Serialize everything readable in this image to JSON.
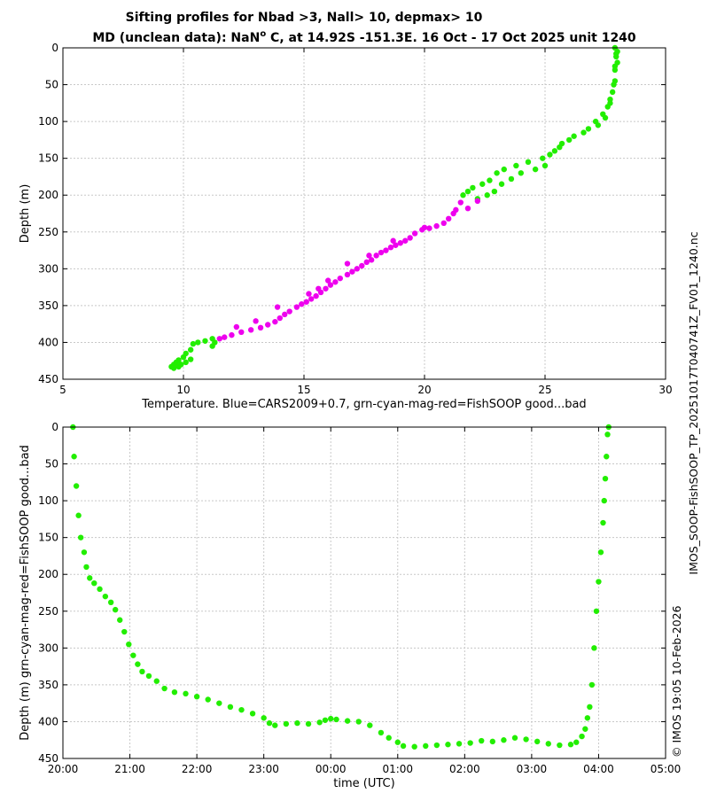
{
  "titles": {
    "line1": "Sifting profiles for Nbad >3, Nall> 10, depmax> 10",
    "line2_prefix": "MD (unclean data): NaN",
    "line2_degree": "o",
    "line2_suffix": " C, at 14.92S -151.3E. 16 Oct - 17 Oct 2025 unit 1240"
  },
  "side_labels": {
    "right_top": "IMOS_SOOP-FishSOOP_TP_20251017T040741Z_FV01_1240.nc",
    "right_bottom": "© IMOS 19:05 10-Feb-2026",
    "right_far": "IMOS/SOOP/SOOP-FishSOOP/REALTIME/2025/10/IMOS_SOOP-FishSOOP_TP_20251017T040741Z_FV01_1240.nc"
  },
  "colors": {
    "good": "#22ee00",
    "suspect": "#ee00ee",
    "grid": "#c8c8c8"
  },
  "chart_data": [
    {
      "type": "scatter",
      "xlabel": "Temperature. Blue=CARS2009+0.7, grn-cyan-mag-red=FishSOOP good...bad",
      "ylabel": "Depth (m)",
      "xlim": [
        5,
        30
      ],
      "ylim": [
        450,
        0
      ],
      "xticks": [
        5,
        10,
        15,
        20,
        25,
        30
      ],
      "yticks": [
        0,
        50,
        100,
        150,
        200,
        250,
        300,
        350,
        400,
        450
      ],
      "grid": true,
      "series": [
        {
          "color": "good",
          "points": [
            [
              27.9,
              0
            ],
            [
              28.0,
              5
            ],
            [
              27.95,
              12
            ],
            [
              28.0,
              20
            ],
            [
              27.9,
              30
            ],
            [
              27.9,
              45
            ],
            [
              27.8,
              60
            ],
            [
              27.7,
              70
            ],
            [
              27.6,
              80
            ],
            [
              27.4,
              90
            ],
            [
              27.1,
              100
            ],
            [
              26.8,
              110
            ],
            [
              26.2,
              120
            ],
            [
              25.7,
              130
            ],
            [
              25.4,
              140
            ],
            [
              24.9,
              150
            ],
            [
              24.3,
              155
            ],
            [
              23.8,
              160
            ],
            [
              23.3,
              165
            ],
            [
              23.0,
              170
            ],
            [
              22.7,
              180
            ],
            [
              22.4,
              185
            ],
            [
              22.0,
              190
            ],
            [
              21.8,
              195
            ],
            [
              21.6,
              200
            ],
            [
              27.95,
              8
            ],
            [
              27.9,
              25
            ],
            [
              27.85,
              50
            ],
            [
              27.7,
              75
            ],
            [
              27.5,
              95
            ],
            [
              27.2,
              105
            ],
            [
              26.6,
              115
            ],
            [
              26.0,
              125
            ],
            [
              25.6,
              135
            ],
            [
              25.2,
              145
            ],
            [
              25.0,
              160
            ],
            [
              24.6,
              165
            ],
            [
              24.0,
              170
            ],
            [
              23.6,
              178
            ],
            [
              23.2,
              185
            ],
            [
              22.9,
              195
            ],
            [
              22.6,
              200
            ],
            [
              22.2,
              205
            ],
            [
              11.2,
              395
            ],
            [
              11.3,
              400
            ],
            [
              11.2,
              405
            ],
            [
              10.9,
              398
            ],
            [
              10.6,
              400
            ],
            [
              10.4,
              402
            ],
            [
              10.3,
              410
            ],
            [
              10.1,
              415
            ],
            [
              10.0,
              420
            ],
            [
              9.8,
              424
            ],
            [
              9.7,
              427
            ],
            [
              9.6,
              430
            ],
            [
              9.5,
              433
            ],
            [
              9.6,
              435
            ],
            [
              9.8,
              433
            ],
            [
              9.9,
              430
            ],
            [
              10.1,
              427
            ],
            [
              10.3,
              423
            ]
          ]
        },
        {
          "color": "suspect",
          "points": [
            [
              21.5,
              210
            ],
            [
              21.3,
              220
            ],
            [
              21.2,
              225
            ],
            [
              21.0,
              232
            ],
            [
              20.8,
              238
            ],
            [
              20.5,
              242
            ],
            [
              20.2,
              245
            ],
            [
              19.9,
              247
            ],
            [
              19.6,
              252
            ],
            [
              19.4,
              258
            ],
            [
              19.2,
              262
            ],
            [
              19.0,
              265
            ],
            [
              18.8,
              268
            ],
            [
              18.6,
              271
            ],
            [
              18.4,
              275
            ],
            [
              18.2,
              278
            ],
            [
              18.0,
              282
            ],
            [
              17.8,
              288
            ],
            [
              17.6,
              291
            ],
            [
              17.4,
              296
            ],
            [
              17.2,
              300
            ],
            [
              17.0,
              304
            ],
            [
              16.8,
              308
            ],
            [
              16.5,
              313
            ],
            [
              16.3,
              318
            ],
            [
              16.1,
              322
            ],
            [
              15.9,
              327
            ],
            [
              15.7,
              332
            ],
            [
              15.5,
              337
            ],
            [
              15.3,
              341
            ],
            [
              15.1,
              345
            ],
            [
              14.9,
              348
            ],
            [
              14.7,
              352
            ],
            [
              14.4,
              358
            ],
            [
              14.2,
              362
            ],
            [
              14.0,
              367
            ],
            [
              13.8,
              372
            ],
            [
              13.5,
              376
            ],
            [
              13.2,
              380
            ],
            [
              12.8,
              383
            ],
            [
              12.4,
              386
            ],
            [
              12.0,
              390
            ],
            [
              11.7,
              393
            ],
            [
              22.2,
              208
            ],
            [
              21.8,
              218
            ],
            [
              20.0,
              244
            ],
            [
              18.7,
              262
            ],
            [
              17.7,
              282
            ],
            [
              16.8,
              293
            ],
            [
              16.0,
              316
            ],
            [
              15.6,
              327
            ],
            [
              15.2,
              334
            ],
            [
              13.9,
              352
            ],
            [
              13.0,
              371
            ],
            [
              12.2,
              379
            ],
            [
              11.5,
              395
            ]
          ]
        }
      ]
    },
    {
      "type": "scatter",
      "xlabel": "time (UTC)",
      "ylabel": "Depth (m) grn-cyan-mag-red=FishSOOP good...bad",
      "xlim": [
        "20:00",
        "05:00"
      ],
      "ylim": [
        450,
        0
      ],
      "xticks": [
        "20:00",
        "21:00",
        "22:00",
        "23:00",
        "00:00",
        "01:00",
        "02:00",
        "03:00",
        "04:00",
        "05:00"
      ],
      "yticks": [
        0,
        50,
        100,
        150,
        200,
        250,
        300,
        350,
        400,
        450
      ],
      "grid": true,
      "series": [
        {
          "color": "good",
          "points": [
            [
              "20:09",
              0
            ],
            [
              "20:10",
              40
            ],
            [
              "20:12",
              80
            ],
            [
              "20:14",
              120
            ],
            [
              "20:16",
              150
            ],
            [
              "20:19",
              170
            ],
            [
              "20:21",
              190
            ],
            [
              "20:24",
              205
            ],
            [
              "20:28",
              212
            ],
            [
              "20:33",
              220
            ],
            [
              "20:38",
              230
            ],
            [
              "20:43",
              238
            ],
            [
              "20:47",
              248
            ],
            [
              "20:51",
              262
            ],
            [
              "20:55",
              278
            ],
            [
              "20:59",
              295
            ],
            [
              "21:03",
              310
            ],
            [
              "21:07",
              322
            ],
            [
              "21:11",
              332
            ],
            [
              "21:17",
              338
            ],
            [
              "21:24",
              345
            ],
            [
              "21:31",
              355
            ],
            [
              "21:40",
              360
            ],
            [
              "21:50",
              362
            ],
            [
              "22:00",
              366
            ],
            [
              "22:10",
              370
            ],
            [
              "22:20",
              375
            ],
            [
              "22:30",
              380
            ],
            [
              "22:40",
              384
            ],
            [
              "22:50",
              389
            ],
            [
              "23:00",
              395
            ],
            [
              "23:05",
              402
            ],
            [
              "23:10",
              405
            ],
            [
              "23:20",
              403
            ],
            [
              "23:30",
              402
            ],
            [
              "23:40",
              403
            ],
            [
              "23:50",
              401
            ],
            [
              "23:55",
              398
            ],
            [
              "24:00",
              396
            ],
            [
              "24:05",
              397
            ],
            [
              "24:15",
              399
            ],
            [
              "24:25",
              400
            ],
            [
              "24:35",
              405
            ],
            [
              "24:45",
              415
            ],
            [
              "24:52",
              422
            ],
            [
              "25:00",
              428
            ],
            [
              "25:05",
              433
            ],
            [
              "25:15",
              434
            ],
            [
              "25:25",
              433
            ],
            [
              "25:35",
              432
            ],
            [
              "25:45",
              431
            ],
            [
              "25:55",
              430
            ],
            [
              "26:05",
              429
            ],
            [
              "26:15",
              426
            ],
            [
              "26:25",
              427
            ],
            [
              "26:35",
              425
            ],
            [
              "26:45",
              422
            ],
            [
              "26:55",
              424
            ],
            [
              "27:05",
              427
            ],
            [
              "27:15",
              430
            ],
            [
              "27:25",
              432
            ],
            [
              "27:35",
              431
            ],
            [
              "27:40",
              428
            ],
            [
              "27:45",
              420
            ],
            [
              "27:48",
              410
            ],
            [
              "27:50",
              395
            ],
            [
              "27:52",
              380
            ],
            [
              "27:54",
              350
            ],
            [
              "27:56",
              300
            ],
            [
              "27:58",
              250
            ],
            [
              "28:00",
              210
            ],
            [
              "28:02",
              170
            ],
            [
              "28:04",
              130
            ],
            [
              "28:05",
              100
            ],
            [
              "28:06",
              70
            ],
            [
              "28:07",
              40
            ],
            [
              "28:08",
              10
            ],
            [
              "28:09",
              0
            ]
          ]
        }
      ]
    }
  ]
}
